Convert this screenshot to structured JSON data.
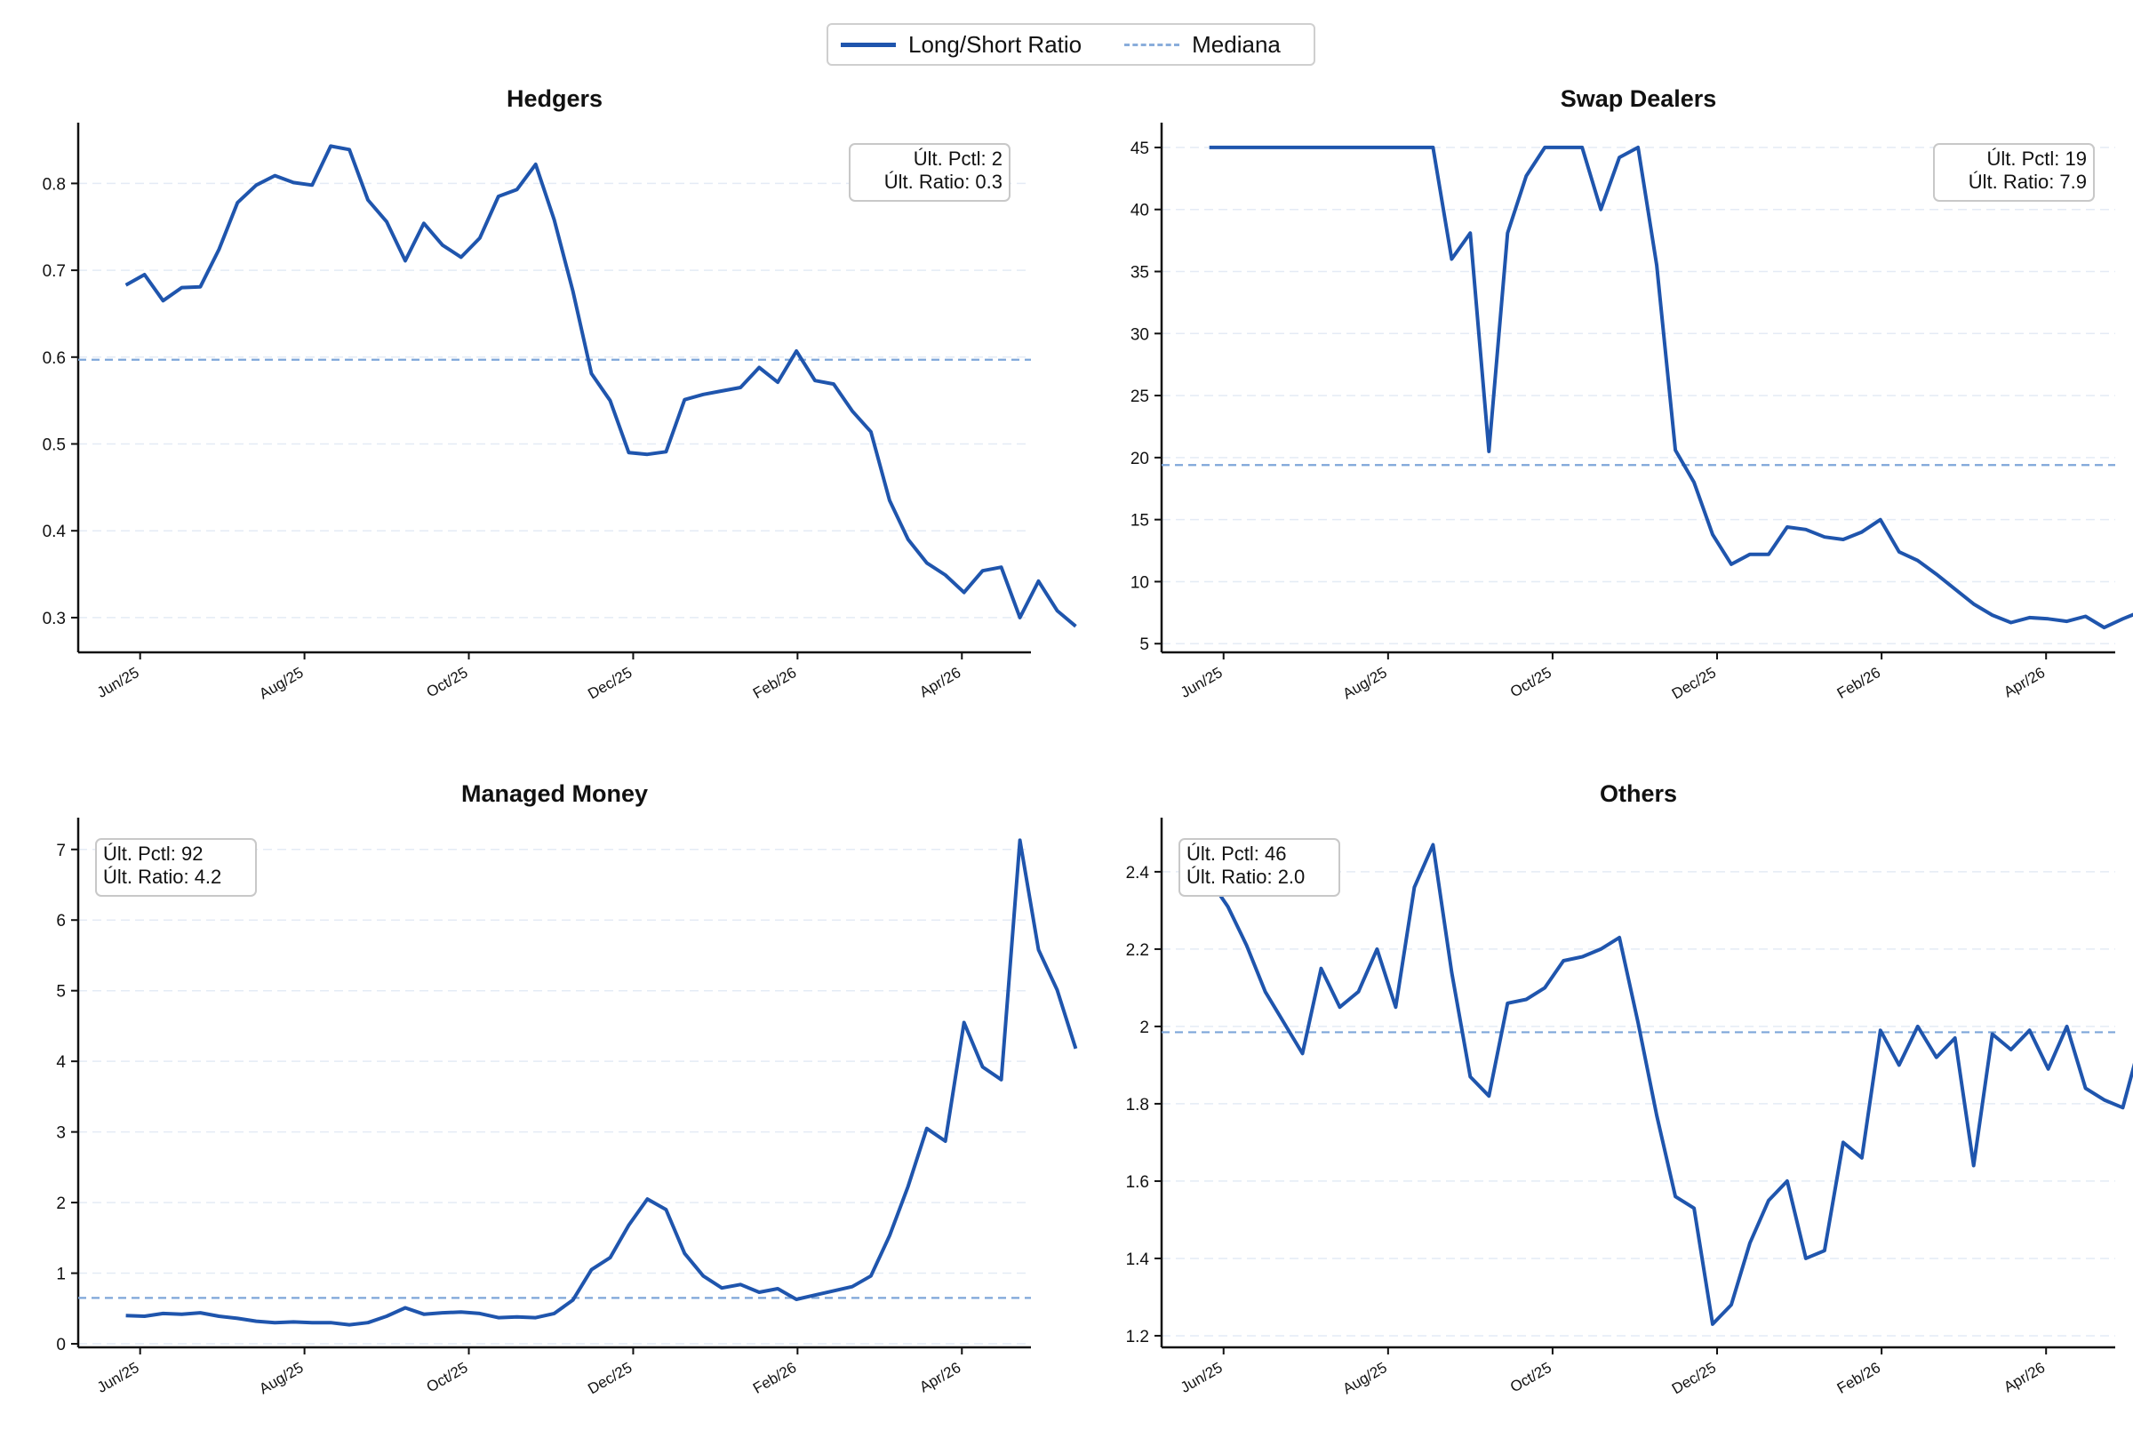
{
  "legend": [
    {
      "label": "Long/Short Ratio",
      "style": "solid"
    },
    {
      "label": "Mediana",
      "style": "dashed"
    }
  ],
  "colors": {
    "line": "#1f55ad",
    "median": "#7ea6d9",
    "grid": "#e4ebf5",
    "axis": "#111111"
  },
  "chart_data": [
    {
      "type": "line",
      "title": "Hedgers",
      "xlabel": "",
      "ylabel": "",
      "x_ticks": [
        "Jun/25",
        "Aug/25",
        "Oct/25",
        "Dec/25",
        "Feb/26",
        "Apr/26"
      ],
      "y_ticks": [
        0.3,
        0.4,
        0.5,
        0.6,
        0.7,
        0.8
      ],
      "ylim": [
        0.26,
        0.87
      ],
      "median": 0.597,
      "grid": "horizontal dashed",
      "annotation": [
        "Últ. Pctl: 2",
        "Últ. Ratio: 0.3"
      ],
      "annotation_position": "top-right",
      "series": [
        {
          "name": "Long/Short Ratio",
          "values": [
            0.683,
            0.695,
            0.665,
            0.68,
            0.681,
            0.724,
            0.778,
            0.798,
            0.809,
            0.801,
            0.798,
            0.843,
            0.839,
            0.781,
            0.756,
            0.711,
            0.754,
            0.729,
            0.715,
            0.737,
            0.785,
            0.793,
            0.822,
            0.758,
            0.676,
            0.581,
            0.55,
            0.49,
            0.488,
            0.491,
            0.551,
            0.557,
            0.561,
            0.565,
            0.588,
            0.571,
            0.607,
            0.573,
            0.569,
            0.538,
            0.514,
            0.435,
            0.39,
            0.363,
            0.349,
            0.329,
            0.354,
            0.358,
            0.3,
            0.342,
            0.308,
            0.29
          ]
        }
      ]
    },
    {
      "type": "line",
      "title": "Swap Dealers",
      "xlabel": "",
      "ylabel": "",
      "x_ticks": [
        "Jun/25",
        "Aug/25",
        "Oct/25",
        "Dec/25",
        "Feb/26",
        "Apr/26"
      ],
      "y_ticks": [
        5,
        10,
        15,
        20,
        25,
        30,
        35,
        40,
        45
      ],
      "ylim": [
        4.3,
        47.0
      ],
      "median": 19.4,
      "grid": "horizontal dashed",
      "annotation": [
        "Últ. Pctl: 19",
        "Últ. Ratio: 7.9"
      ],
      "annotation_position": "top-right",
      "series": [
        {
          "name": "Long/Short Ratio",
          "values": [
            45.0,
            45.0,
            45.0,
            45.0,
            45.0,
            45.0,
            45.0,
            45.0,
            45.0,
            45.0,
            45.0,
            45.0,
            45.0,
            36.0,
            38.1,
            20.5,
            38.1,
            42.7,
            45.0,
            45.0,
            45.0,
            40.0,
            44.2,
            45.0,
            35.5,
            20.6,
            18.0,
            13.8,
            11.4,
            12.2,
            12.2,
            14.4,
            14.2,
            13.6,
            13.4,
            14.0,
            15.0,
            12.4,
            11.7,
            10.6,
            9.4,
            8.2,
            7.3,
            6.7,
            7.1,
            7.0,
            6.8,
            7.2,
            6.3,
            7.0,
            7.6,
            7.9
          ]
        }
      ]
    },
    {
      "type": "line",
      "title": "Managed Money",
      "xlabel": "",
      "ylabel": "",
      "x_ticks": [
        "Jun/25",
        "Aug/25",
        "Oct/25",
        "Dec/25",
        "Feb/26",
        "Apr/26"
      ],
      "y_ticks": [
        0,
        1,
        2,
        3,
        4,
        5,
        6,
        7
      ],
      "ylim": [
        -0.05,
        7.45
      ],
      "median": 0.65,
      "grid": "horizontal dashed",
      "annotation": [
        "Últ. Pctl: 92",
        "Últ. Ratio: 4.2"
      ],
      "annotation_position": "top-left",
      "series": [
        {
          "name": "Long/Short Ratio",
          "values": [
            0.4,
            0.39,
            0.43,
            0.42,
            0.44,
            0.39,
            0.36,
            0.32,
            0.3,
            0.31,
            0.3,
            0.3,
            0.27,
            0.3,
            0.39,
            0.51,
            0.42,
            0.44,
            0.45,
            0.43,
            0.37,
            0.38,
            0.37,
            0.43,
            0.62,
            1.05,
            1.22,
            1.68,
            2.05,
            1.9,
            1.28,
            0.96,
            0.79,
            0.84,
            0.73,
            0.78,
            0.63,
            0.69,
            0.75,
            0.81,
            0.96,
            1.53,
            2.23,
            3.05,
            2.87,
            4.55,
            3.92,
            3.74,
            7.13,
            5.58,
            5.01,
            4.18
          ]
        }
      ]
    },
    {
      "type": "line",
      "title": "Others",
      "xlabel": "",
      "ylabel": "",
      "x_ticks": [
        "Jun/25",
        "Aug/25",
        "Oct/25",
        "Dec/25",
        "Feb/26",
        "Apr/26"
      ],
      "y_ticks": [
        1.2,
        1.4,
        1.6,
        1.8,
        2.0,
        2.2,
        2.4
      ],
      "ylim": [
        1.17,
        2.54
      ],
      "median": 1.985,
      "grid": "horizontal dashed",
      "annotation": [
        "Últ. Pctl: 46",
        "Últ. Ratio: 2.0"
      ],
      "annotation_position": "top-left",
      "series": [
        {
          "name": "Long/Short Ratio",
          "values": [
            2.38,
            2.31,
            2.21,
            2.09,
            2.01,
            1.93,
            2.15,
            2.05,
            2.09,
            2.2,
            2.05,
            2.36,
            2.47,
            2.14,
            1.87,
            1.82,
            2.06,
            2.07,
            2.1,
            2.17,
            2.18,
            2.2,
            2.23,
            2.01,
            1.77,
            1.56,
            1.53,
            1.23,
            1.28,
            1.44,
            1.55,
            1.6,
            1.4,
            1.42,
            1.7,
            1.66,
            1.99,
            1.9,
            2.0,
            1.92,
            1.97,
            1.64,
            1.98,
            1.94,
            1.99,
            1.89,
            2.0,
            1.84,
            1.81,
            1.79,
            1.97
          ]
        }
      ]
    }
  ]
}
